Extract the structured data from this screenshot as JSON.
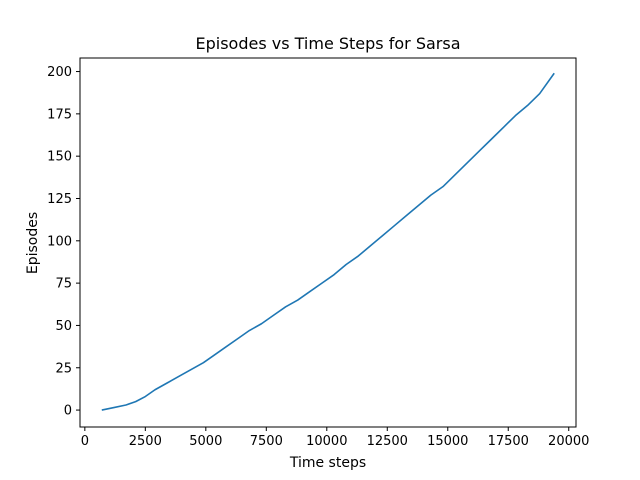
{
  "chart_data": {
    "type": "line",
    "title": "Episodes vs Time Steps for Sarsa",
    "xlabel": "Time steps",
    "ylabel": "Episodes",
    "xlim": [
      -200,
      20300
    ],
    "ylim": [
      -10,
      208
    ],
    "xticks": [
      0,
      2500,
      5000,
      7500,
      10000,
      12500,
      15000,
      17500,
      20000
    ],
    "yticks": [
      0,
      25,
      50,
      75,
      100,
      125,
      150,
      175,
      200
    ],
    "grid": false,
    "series": [
      {
        "color": "#1f77b4",
        "x": [
          700,
          1200,
          1700,
          2100,
          2500,
          2900,
          3400,
          3900,
          4400,
          4900,
          5300,
          5800,
          6300,
          6800,
          7300,
          7800,
          8300,
          8800,
          9300,
          9800,
          10300,
          10800,
          11300,
          11800,
          12300,
          12800,
          13300,
          13800,
          14300,
          14800,
          15300,
          15800,
          16300,
          16800,
          17300,
          17800,
          18300,
          18800,
          19400
        ],
        "values": [
          0,
          1.5,
          3,
          5,
          8,
          12,
          16,
          20,
          24,
          28,
          32,
          37,
          42,
          47,
          51,
          56,
          61,
          65,
          70,
          75,
          80,
          86,
          91,
          97,
          103,
          109,
          115,
          121,
          127,
          132,
          139,
          146,
          153,
          160,
          167,
          174,
          180,
          187,
          199
        ]
      }
    ]
  }
}
